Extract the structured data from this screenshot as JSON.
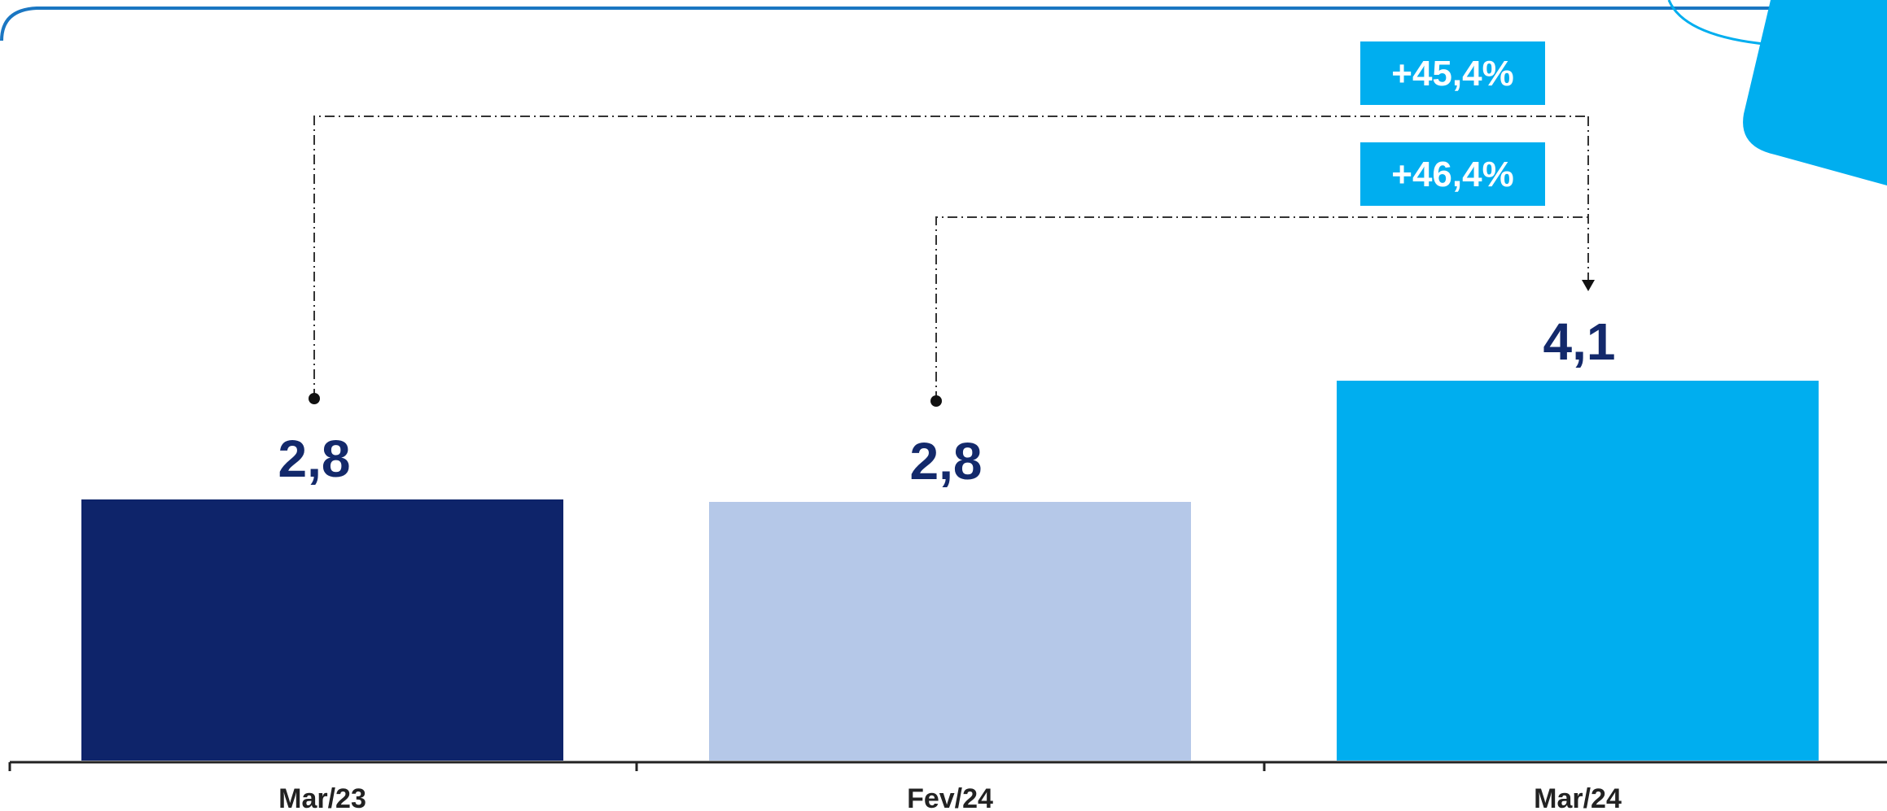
{
  "colors": {
    "frame": "#1A76C2",
    "deco": "#00AEEF",
    "badge_bg": "#00AEEF",
    "badge_text": "#FFFFFF",
    "value_text": "#13296B",
    "axis": "#222222",
    "connector": "#333333",
    "category_text": "#222222"
  },
  "chart_data": {
    "type": "bar",
    "categories": [
      "Mar/23",
      "Fev/24",
      "Mar/24"
    ],
    "values": [
      2.8,
      2.8,
      4.1
    ],
    "value_labels": [
      "2,8",
      "2,8",
      "4,1"
    ],
    "bar_colors": [
      "#0E246A",
      "#B5C8E8",
      "#00AEEF"
    ],
    "title": "",
    "xlabel": "",
    "ylabel": "",
    "ylim": [
      0,
      4.1
    ],
    "grid": false,
    "annotations": [
      {
        "from_category": "Mar/23",
        "to_category": "Mar/24",
        "label": "+45,4%"
      },
      {
        "from_category": "Fev/24",
        "to_category": "Mar/24",
        "label": "+46,4%"
      }
    ]
  }
}
